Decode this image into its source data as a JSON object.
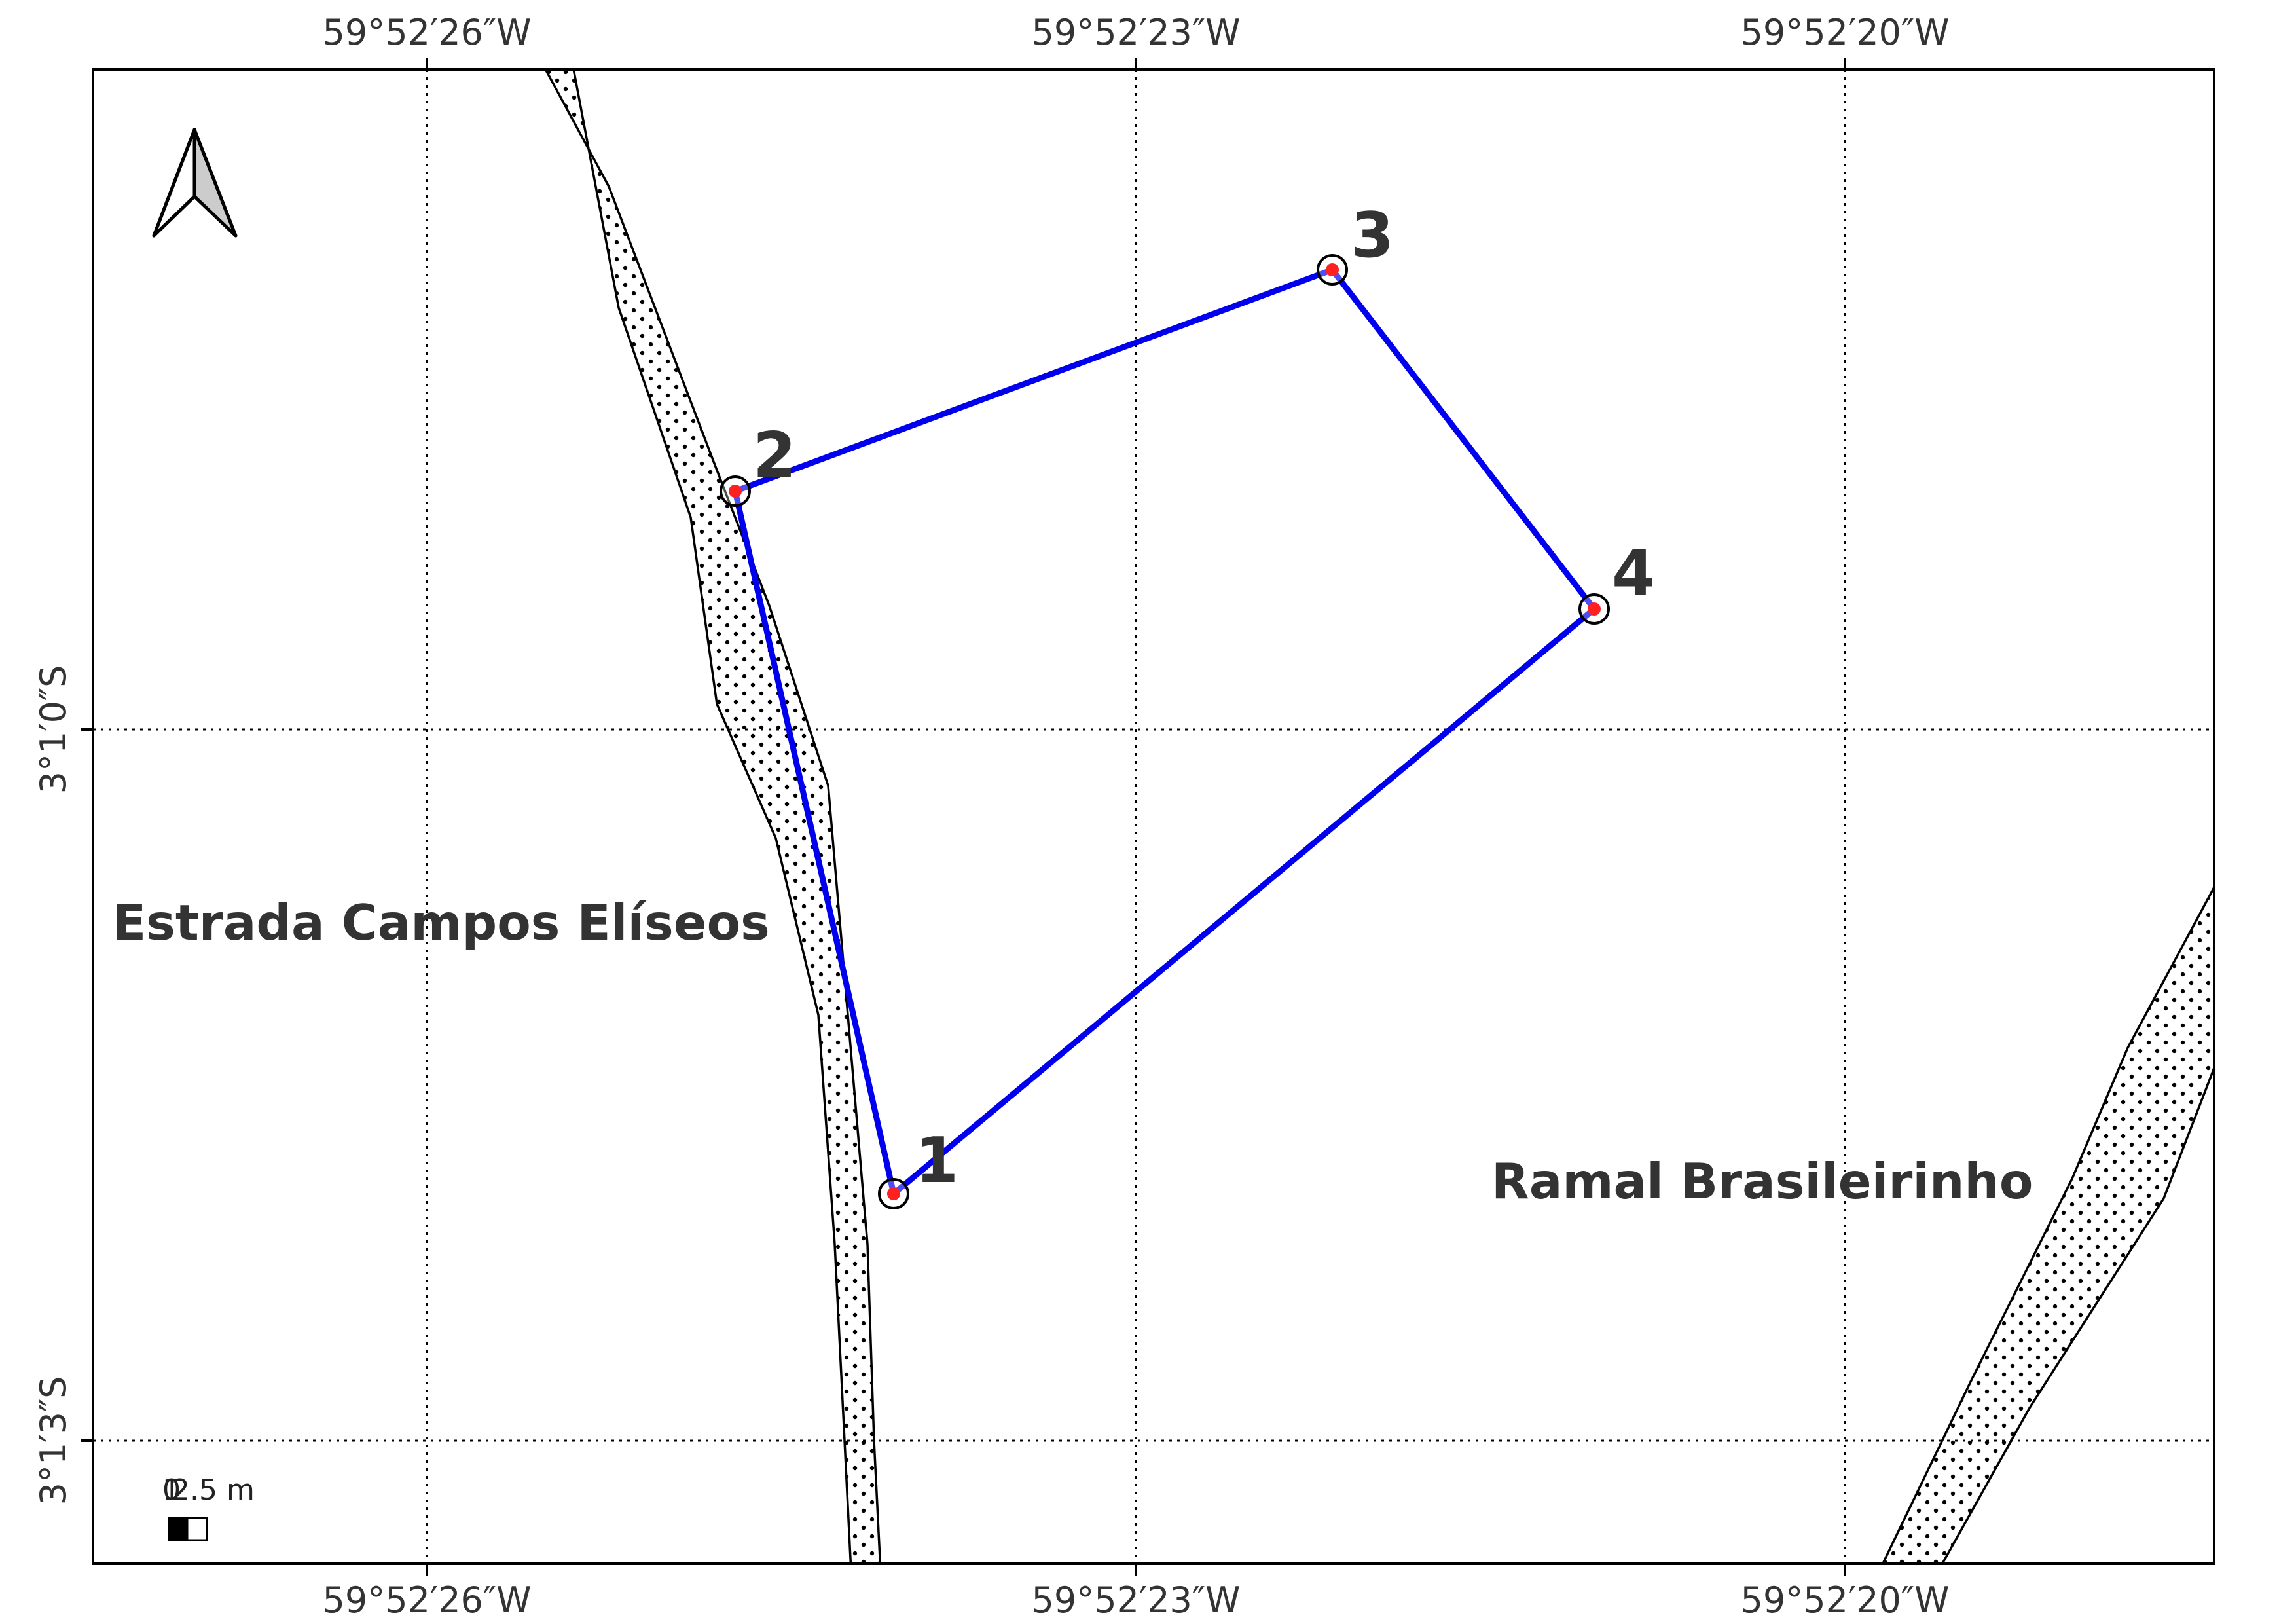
{
  "map": {
    "top_ticks": [
      "59°52′26″W",
      "59°52′23″W",
      "59°52′20″W"
    ],
    "bottom_ticks": [
      "59°52′26″W",
      "59°52′23″W",
      "59°52′20″W"
    ],
    "left_ticks": [
      "3°1′0″S",
      "3°1′3″S"
    ],
    "roads": [
      {
        "name": "Estrada Campos Elíseos"
      },
      {
        "name": "Ramal Brasileirinho"
      }
    ],
    "vertices": [
      {
        "label": "1"
      },
      {
        "label": "2"
      },
      {
        "label": "3"
      },
      {
        "label": "4"
      }
    ],
    "scale_bar": {
      "label_start": "0",
      "label_end": "2.5 m",
      "label_overlap": "1"
    },
    "north_arrow": {
      "icon": "north-arrow-icon"
    },
    "colors": {
      "polygon": "#0000ee",
      "vertex_fill": "#ff2020",
      "road_outline": "#000000",
      "grid": "#000000"
    }
  }
}
